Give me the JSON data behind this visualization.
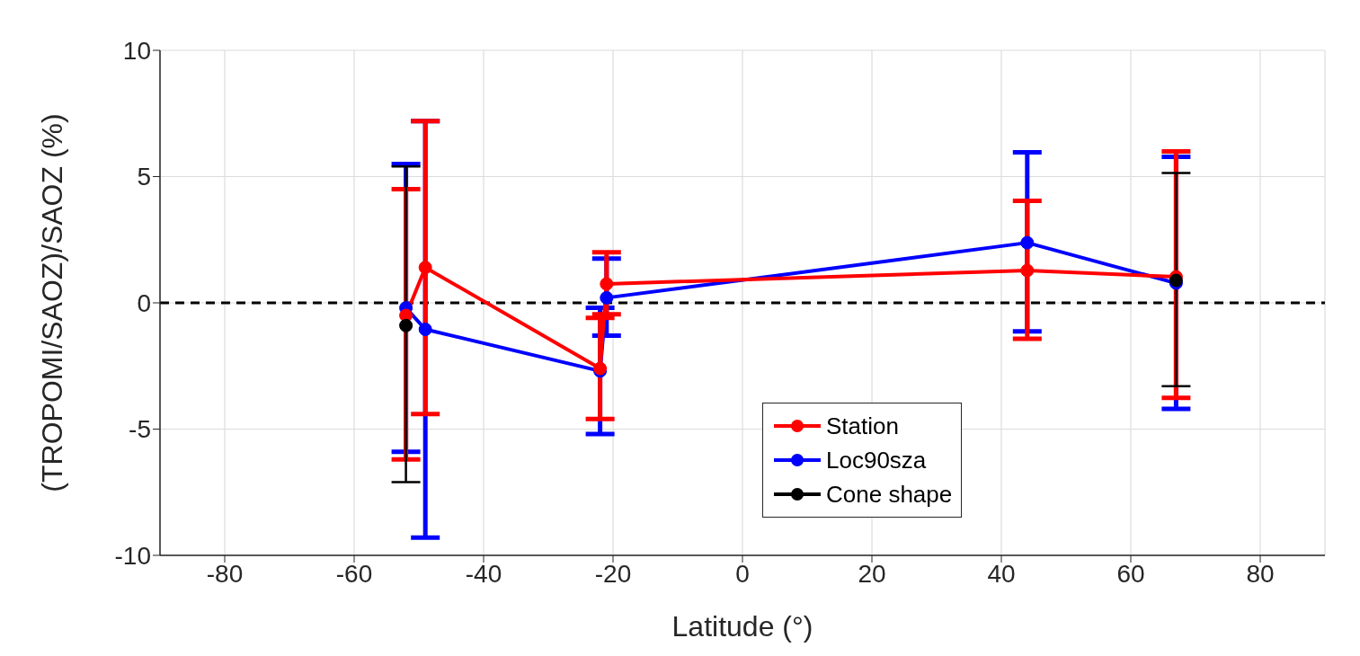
{
  "chart_data": {
    "type": "line",
    "xlabel": "Latitude (°)",
    "ylabel": "(TROPOMI/SAOZ)/SAOZ (%)",
    "xlim": [
      -90,
      90
    ],
    "xticks": [
      -80,
      -60,
      -40,
      -20,
      0,
      20,
      40,
      60,
      80
    ],
    "ylim": [
      -10,
      10
    ],
    "yticks": [
      -10,
      -5,
      0,
      5,
      10
    ],
    "grid": true,
    "legend": "bottom right",
    "marker": "circle",
    "line_style": "solid",
    "ref_lines": [
      {
        "axis": "y",
        "value": 0,
        "color": "#000000",
        "line_style": "dashed"
      }
    ],
    "series": [
      {
        "name": "Station",
        "color": "#ff0000",
        "x": [
          -52,
          -49,
          -22,
          -21,
          44,
          67
        ],
        "values": [
          -0.5,
          1.4,
          -2.6,
          0.75,
          1.28,
          1.03
        ],
        "errors": [
          [
            -6.2,
            4.5
          ],
          [
            -4.4,
            7.2
          ],
          [
            -4.6,
            -0.6
          ],
          [
            -0.45,
            2.0
          ],
          [
            -1.42,
            4.04
          ],
          [
            -3.76,
            6.0
          ]
        ]
      },
      {
        "name": "Loc90sza",
        "color": "#0000ff",
        "x": [
          -52,
          -49,
          -22,
          -21,
          44,
          67
        ],
        "values": [
          -0.2,
          -1.05,
          -2.7,
          0.2,
          2.38,
          0.78
        ],
        "errors": [
          [
            -5.9,
            5.5
          ],
          [
            -9.3,
            7.2
          ],
          [
            -5.2,
            -0.2
          ],
          [
            -1.3,
            1.75
          ],
          [
            -1.13,
            5.96
          ],
          [
            -4.2,
            5.78
          ]
        ]
      },
      {
        "name": "Cone shape",
        "type": "scatter",
        "color": "#000000",
        "x": [
          -52,
          67
        ],
        "values": [
          -0.9,
          0.89
        ],
        "errors": [
          [
            -7.1,
            5.4
          ],
          [
            -3.3,
            5.14
          ]
        ]
      }
    ]
  }
}
